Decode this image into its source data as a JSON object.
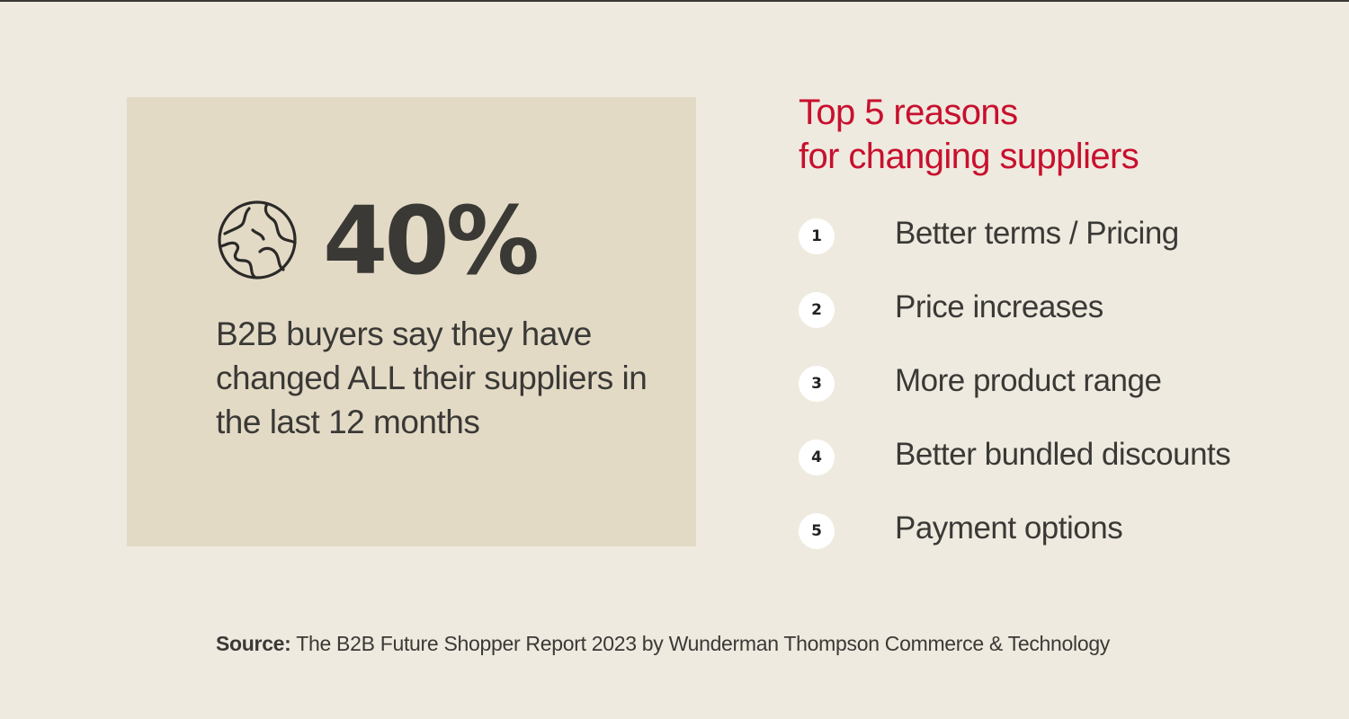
{
  "stat": {
    "value": "40%",
    "description": "B2B buyers say they have changed ALL their suppliers in the last 12 months",
    "icon": "globe-icon"
  },
  "reasons": {
    "title_line1": "Top 5 reasons",
    "title_line2": "for changing suppliers",
    "items": [
      {
        "num": "1",
        "label": "Better terms / Pricing"
      },
      {
        "num": "2",
        "label": "Price increases"
      },
      {
        "num": "3",
        "label": "More product range"
      },
      {
        "num": "4",
        "label": "Better bundled discounts"
      },
      {
        "num": "5",
        "label": "Payment options"
      }
    ]
  },
  "source": {
    "label": "Source:",
    "text": "The B2B Future Shopper Report 2023 by Wunderman Thompson Commerce & Technology"
  },
  "colors": {
    "background": "#efeadf",
    "panel": "#e3dac6",
    "accent": "#c8102e",
    "text": "#3a3936",
    "badge": "#ffffff"
  }
}
